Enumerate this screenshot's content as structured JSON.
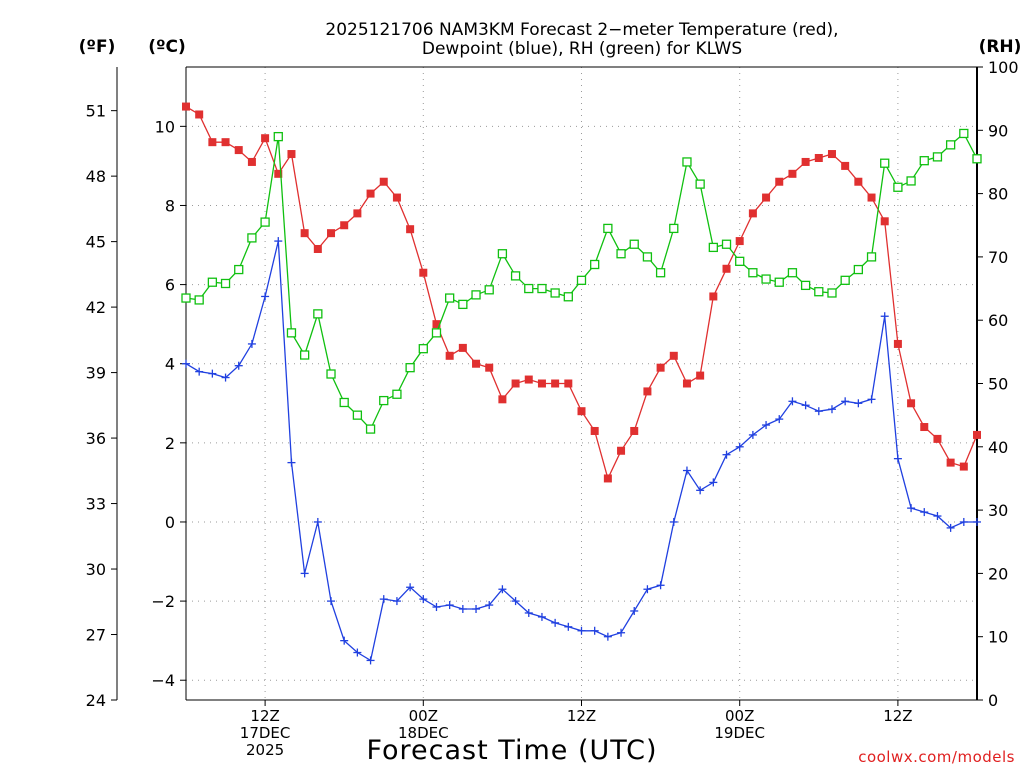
{
  "chart_data": {
    "type": "line",
    "title_line1": "2025121706 NAM3KM Forecast 2−meter Temperature (red),",
    "title_line2": "Dewpoint (blue), RH (green) for KLWS",
    "unit_left_outer": "(ºF)",
    "unit_left_inner": "(ºC)",
    "unit_right": "(RH)",
    "xlabel": "Forecast Time (UTC)",
    "credit": "coolwx.com/models",
    "x_range": [
      0,
      60
    ],
    "x_ticks": [
      {
        "x": 6,
        "line1": "12Z",
        "line2": "17DEC",
        "line3": "2025"
      },
      {
        "x": 18,
        "line1": "00Z",
        "line2": "18DEC",
        "line3": ""
      },
      {
        "x": 30,
        "line1": "12Z",
        "line2": "",
        "line3": ""
      },
      {
        "x": 42,
        "line1": "00Z",
        "line2": "19DEC",
        "line3": ""
      },
      {
        "x": 54,
        "line1": "12Z",
        "line2": "",
        "line3": ""
      }
    ],
    "celsius_axis": {
      "range": [
        -4.5,
        11.5
      ],
      "ticks": [
        -4,
        -2,
        0,
        2,
        4,
        6,
        8,
        10
      ]
    },
    "fahrenheit_axis": {
      "range": [
        24,
        53
      ],
      "ticks": [
        24,
        27,
        30,
        33,
        36,
        39,
        42,
        45,
        48,
        51
      ]
    },
    "rh_axis": {
      "range": [
        0,
        100
      ],
      "ticks": [
        0,
        10,
        20,
        30,
        40,
        50,
        60,
        70,
        80,
        90,
        100
      ]
    },
    "series": [
      {
        "name": "Temperature",
        "axis": "celsius",
        "color": "#e03030",
        "marker": "filled-square",
        "x": [
          0,
          1,
          2,
          3,
          4,
          5,
          6,
          7,
          8,
          9,
          10,
          11,
          12,
          13,
          14,
          15,
          16,
          17,
          18,
          19,
          20,
          21,
          22,
          23,
          24,
          25,
          26,
          27,
          28,
          29,
          30,
          31,
          32,
          33,
          34,
          35,
          36,
          37,
          38,
          39,
          40,
          41,
          42,
          43,
          44,
          45,
          46,
          47,
          48,
          49,
          50,
          51,
          52,
          53,
          54,
          55,
          56,
          57,
          58,
          59,
          60
        ],
        "values": [
          10.5,
          10.3,
          9.6,
          9.6,
          9.4,
          9.1,
          9.7,
          8.8,
          9.3,
          7.3,
          6.9,
          7.3,
          7.5,
          7.8,
          8.3,
          8.6,
          8.2,
          7.4,
          6.3,
          5.0,
          4.2,
          4.4,
          4.0,
          3.9,
          3.1,
          3.5,
          3.6,
          3.5,
          3.5,
          3.5,
          2.8,
          2.3,
          1.1,
          1.8,
          2.3,
          3.3,
          3.9,
          4.2,
          3.5,
          3.7,
          5.7,
          6.4,
          7.1,
          7.8,
          8.2,
          8.6,
          8.8,
          9.1,
          9.2,
          9.3,
          9.0,
          8.6,
          8.2,
          7.6,
          4.5,
          3.0,
          2.4,
          2.1,
          1.5,
          1.4,
          2.2
        ]
      },
      {
        "name": "Dewpoint",
        "axis": "celsius",
        "color": "#2040e0",
        "marker": "plus",
        "x": [
          0,
          1,
          2,
          3,
          4,
          5,
          6,
          7,
          8,
          9,
          10,
          11,
          12,
          13,
          14,
          15,
          16,
          17,
          18,
          19,
          20,
          21,
          22,
          23,
          24,
          25,
          26,
          27,
          28,
          29,
          30,
          31,
          32,
          33,
          34,
          35,
          36,
          37,
          38,
          39,
          40,
          41,
          42,
          43,
          44,
          45,
          46,
          47,
          48,
          49,
          50,
          51,
          52,
          53,
          54,
          55,
          56,
          57,
          58,
          59,
          60
        ],
        "values": [
          4.0,
          3.8,
          3.75,
          3.65,
          3.95,
          4.5,
          5.7,
          7.1,
          1.5,
          -1.3,
          0.0,
          -2.0,
          -3.0,
          -3.3,
          -3.5,
          -1.95,
          -2.0,
          -1.65,
          -1.95,
          -2.15,
          -2.1,
          -2.2,
          -2.2,
          -2.1,
          -1.7,
          -2.0,
          -2.3,
          -2.4,
          -2.55,
          -2.65,
          -2.75,
          -2.75,
          -2.9,
          -2.8,
          -2.25,
          -1.7,
          -1.6,
          0.0,
          1.3,
          0.8,
          1.0,
          1.7,
          1.9,
          2.2,
          2.45,
          2.6,
          3.05,
          2.95,
          2.8,
          2.85,
          3.05,
          3.0,
          3.1,
          5.2,
          1.6,
          0.35,
          0.25,
          0.15,
          -0.15,
          0.0,
          0.0
        ]
      },
      {
        "name": "RH",
        "axis": "rh",
        "color": "#10c010",
        "marker": "open-square",
        "x": [
          0,
          1,
          2,
          3,
          4,
          5,
          6,
          7,
          8,
          9,
          10,
          11,
          12,
          13,
          14,
          15,
          16,
          17,
          18,
          19,
          20,
          21,
          22,
          23,
          24,
          25,
          26,
          27,
          28,
          29,
          30,
          31,
          32,
          33,
          34,
          35,
          36,
          37,
          38,
          39,
          40,
          41,
          42,
          43,
          44,
          45,
          46,
          47,
          48,
          49,
          50,
          51,
          52,
          53,
          54,
          55,
          56,
          57,
          58,
          59,
          60
        ],
        "values": [
          63.5,
          63.2,
          66.0,
          65.8,
          68.0,
          73.0,
          75.5,
          89.0,
          58.0,
          54.5,
          61.0,
          51.5,
          47.0,
          45.0,
          42.8,
          47.3,
          48.3,
          52.5,
          55.5,
          58.0,
          63.5,
          62.5,
          64.0,
          64.8,
          70.5,
          67.0,
          65.0,
          65.0,
          64.3,
          63.7,
          66.3,
          68.8,
          74.5,
          70.5,
          72.0,
          70.0,
          67.5,
          74.5,
          85.0,
          81.5,
          71.5,
          72.0,
          69.3,
          67.5,
          66.5,
          66.0,
          67.5,
          65.5,
          64.5,
          64.3,
          66.3,
          68.0,
          70.0,
          84.8,
          81.0,
          82.0,
          85.2,
          85.8,
          87.7,
          89.5,
          85.5
        ]
      }
    ]
  }
}
